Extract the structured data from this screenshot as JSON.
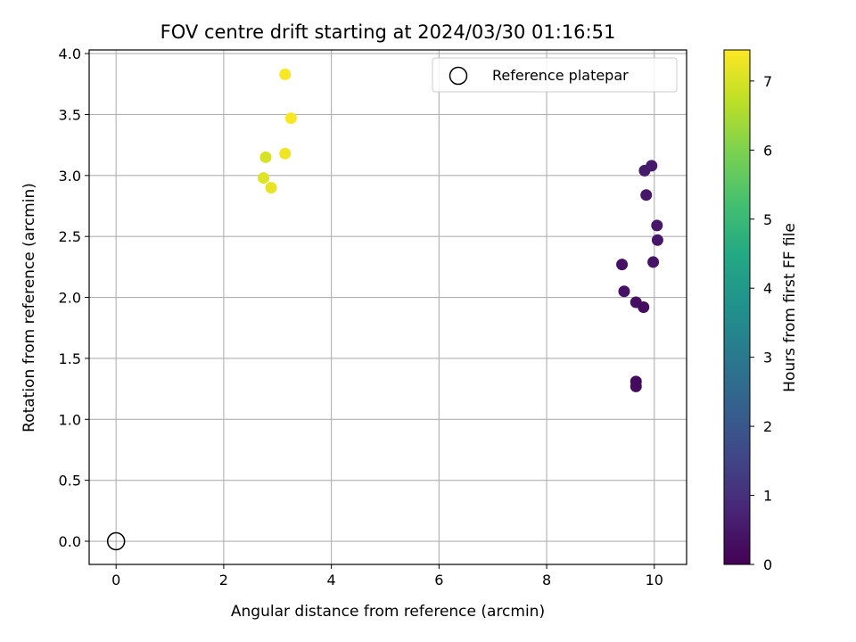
{
  "chart_data": {
    "type": "scatter",
    "title": "FOV centre drift starting at 2024/03/30 01:16:51",
    "xlabel": "Angular distance from reference (arcmin)",
    "ylabel": "Rotation from reference (arcmin)",
    "xlim": [
      -0.5,
      10.6
    ],
    "ylim": [
      -0.19,
      4.03
    ],
    "x_ticks": [
      0,
      2,
      4,
      6,
      8,
      10
    ],
    "y_ticks": [
      0.0,
      0.5,
      1.0,
      1.5,
      2.0,
      2.5,
      3.0,
      3.5,
      4.0
    ],
    "grid": true,
    "legend": {
      "placement": "upper-right",
      "entries": [
        "Reference platepar"
      ]
    },
    "reference": {
      "x": 0,
      "y": 0
    },
    "colorbar": {
      "label": "Hours from first FF file",
      "min": 0,
      "max": 7.45,
      "ticks": [
        0,
        1,
        2,
        3,
        4,
        5,
        6,
        7
      ],
      "colormap": "viridis"
    },
    "points": [
      {
        "x": 9.95,
        "y": 3.08,
        "hours": 0.55
      },
      {
        "x": 9.82,
        "y": 3.04,
        "hours": 0.55
      },
      {
        "x": 9.85,
        "y": 2.84,
        "hours": 0.45
      },
      {
        "x": 10.05,
        "y": 2.59,
        "hours": 0.5
      },
      {
        "x": 10.06,
        "y": 2.47,
        "hours": 0.45
      },
      {
        "x": 9.98,
        "y": 2.29,
        "hours": 0.4
      },
      {
        "x": 9.4,
        "y": 2.27,
        "hours": 0.35
      },
      {
        "x": 9.44,
        "y": 2.05,
        "hours": 0.35
      },
      {
        "x": 9.66,
        "y": 1.96,
        "hours": 0.3
      },
      {
        "x": 9.8,
        "y": 1.92,
        "hours": 0.25
      },
      {
        "x": 9.66,
        "y": 1.31,
        "hours": 0.2
      },
      {
        "x": 9.66,
        "y": 1.27,
        "hours": 0.2
      },
      {
        "x": 3.14,
        "y": 3.83,
        "hours": 7.4
      },
      {
        "x": 3.25,
        "y": 3.47,
        "hours": 7.4
      },
      {
        "x": 3.14,
        "y": 3.18,
        "hours": 7.3
      },
      {
        "x": 2.78,
        "y": 3.15,
        "hours": 7.0
      },
      {
        "x": 2.74,
        "y": 2.98,
        "hours": 7.1
      },
      {
        "x": 2.88,
        "y": 2.9,
        "hours": 7.2
      }
    ]
  }
}
